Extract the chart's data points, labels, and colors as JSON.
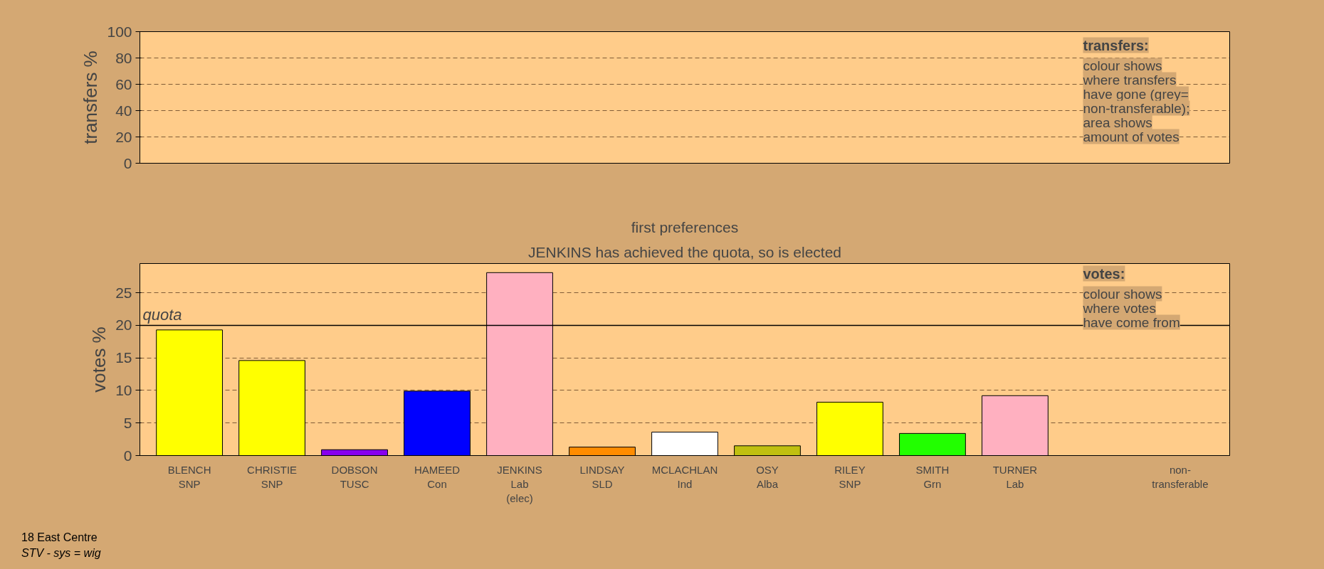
{
  "chart_data": [
    {
      "type": "bar",
      "ylabel": "transfers %",
      "categories": [
        null,
        null,
        null,
        null,
        null,
        null,
        null,
        null,
        null,
        null,
        null,
        null,
        null
      ],
      "values": [
        null,
        null,
        null,
        null,
        null,
        null,
        null,
        null,
        null,
        null,
        null,
        null,
        null
      ],
      "ylim": [
        0,
        100
      ],
      "yticks": [
        0,
        20,
        40,
        60,
        80,
        100
      ],
      "grid": "y",
      "tick_labels": "y",
      "annotations": [
        "transfers:",
        "colour shows",
        "where transfers",
        "have gone (grey=",
        "non-transferable);",
        "area shows",
        "amount of votes"
      ]
    },
    {
      "type": "bar",
      "title": "first preferences",
      "subtitle": "JENKINS has achieved the quota, so is elected",
      "ylabel": "votes %",
      "categories": [
        "BLENCH\nSNP",
        "CHRISTIE\nSNP",
        "DOBSON\nTUSC",
        "HAMEED\nCon",
        "JENKINS\nLab\n(elec)",
        "LINDSAY\nSLD",
        "MCLACHLAN\nInd",
        "OSY\nAlba",
        "RILEY\nSNP",
        "SMITH\nGrn",
        "TURNER\nLab",
        null,
        "non-\ntransferable"
      ],
      "values": [
        19.3,
        14.6,
        0.9,
        9.9,
        28.1,
        1.3,
        3.6,
        1.5,
        8.2,
        3.4,
        9.2,
        null,
        null
      ],
      "colors": [
        "#ffff00",
        "#ffff00",
        "#8800ee",
        "#0000ff",
        "#ffb0c0",
        "#ff8c00",
        "#ffffff",
        "#c0c010",
        "#ffff00",
        "#22ff00",
        "#ffb0c0",
        "#ffffff",
        "#ffffff"
      ],
      "ylim": [
        0,
        29.5
      ],
      "yticks": [
        0,
        5,
        10,
        15,
        20,
        25
      ],
      "grid": "y",
      "ref_lines": [
        {
          "axis": "y",
          "value": 20,
          "label": "quota"
        }
      ],
      "annotations": [
        "votes:",
        "colour shows",
        "where votes",
        "have come from",
        "18 East Centre",
        "STV - sys = wig"
      ]
    }
  ]
}
